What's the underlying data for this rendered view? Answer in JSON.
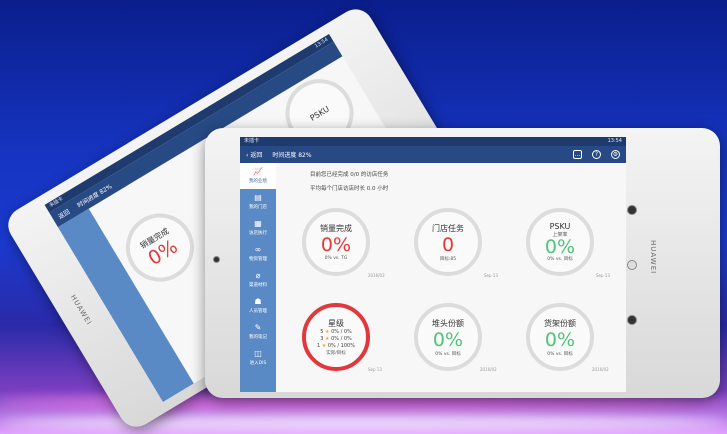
{
  "status_bar": {
    "carrier": "未插卡",
    "time": "13:54"
  },
  "header": {
    "back_label": "返回",
    "progress_label": "时间进度 82%"
  },
  "sidebar": {
    "items": [
      {
        "label": "我的业绩",
        "icon": "chart-icon",
        "active": true
      },
      {
        "label": "我的门店",
        "icon": "store-icon"
      },
      {
        "label": "访店执行",
        "icon": "clipboard-icon"
      },
      {
        "label": "物资管理",
        "icon": "grid-icon"
      },
      {
        "label": "渠道材料",
        "icon": "paperclip-icon"
      },
      {
        "label": "人员管理",
        "icon": "people-icon"
      },
      {
        "label": "我的笔记",
        "icon": "note-icon"
      },
      {
        "label": "进入DIS",
        "icon": "list-icon"
      }
    ]
  },
  "summary": {
    "line1": "目前您已经完成 0/0 的访店任务",
    "line2": "平均每个门店访店时长 0.0 小时"
  },
  "cards": [
    {
      "title": "销量完成",
      "value": "0%",
      "footer": "0% vs. TG",
      "date": "2016/02",
      "color": "red"
    },
    {
      "title": "门店任务",
      "value": "0",
      "footer": "目标:85",
      "date": "Sep 13",
      "color": "red"
    },
    {
      "title": "PSKU",
      "subtitle": "上架率",
      "value": "0%",
      "footer": "0% vs. 目标",
      "date": "Sep 13",
      "color": "green"
    },
    {
      "title": "星级",
      "stars": [
        {
          "n": "5",
          "v": "0% / 0%"
        },
        {
          "n": "3",
          "v": "0% / 0%"
        },
        {
          "n": "1",
          "v": "0% / 100%"
        }
      ],
      "footer": "实际/目标",
      "date": "Sep 13"
    },
    {
      "title": "堆头份额",
      "value": "0%",
      "footer": "0% vs. 目标",
      "date": "2016/02",
      "color": "green"
    },
    {
      "title": "货架份额",
      "value": "0%",
      "footer": "0% vs. 目标",
      "date": "2016/02",
      "color": "green"
    }
  ],
  "brand": "HUAWEI",
  "colors": {
    "header": "#274a85",
    "sidebar": "#5a8ac6",
    "red": "#e23a3a",
    "green": "#4fc47a"
  }
}
